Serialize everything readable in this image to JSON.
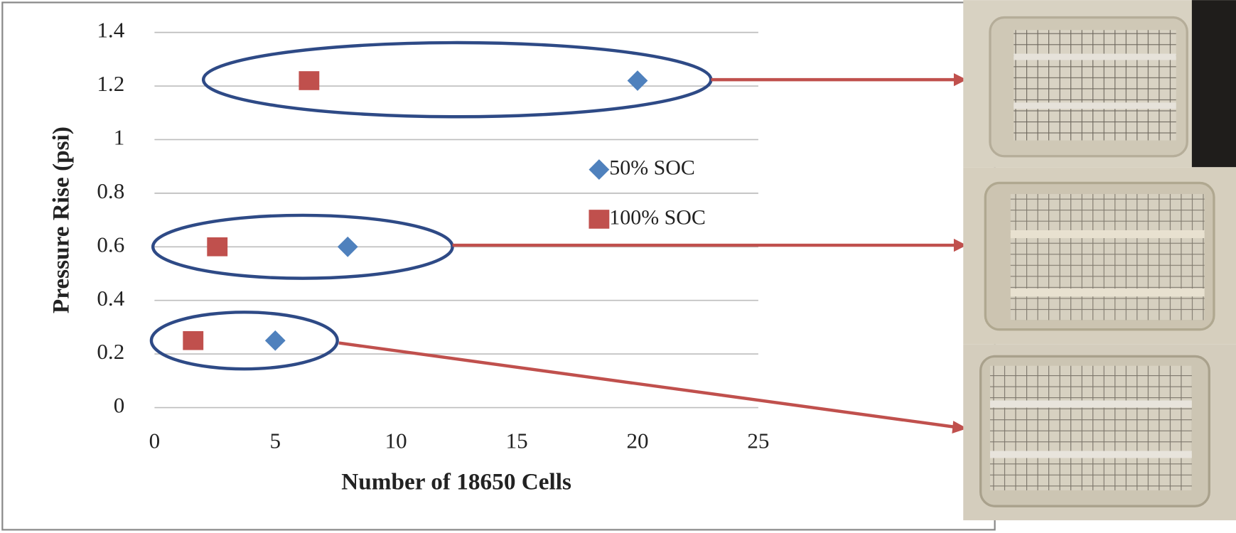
{
  "chart_data": {
    "type": "scatter",
    "xlabel": "Number of 18650 Cells",
    "ylabel": "Pressure Rise (psi)",
    "xlim": [
      0,
      25
    ],
    "xticks": [
      0,
      5,
      10,
      15,
      20,
      25
    ],
    "ylim": [
      0,
      1.4
    ],
    "yticks": [
      0,
      0.2,
      0.4,
      0.6,
      0.8,
      1,
      1.2,
      1.4
    ],
    "grid": true,
    "series": [
      {
        "name": "50% SOC",
        "color": "#4f81bd",
        "marker": "diamond",
        "x": [
          5,
          8,
          20
        ],
        "values": [
          0.25,
          0.6,
          1.22
        ]
      },
      {
        "name": "100% SOC",
        "color": "#c0504d",
        "marker": "square",
        "x": [
          1.6,
          2.6,
          6.4
        ],
        "values": [
          0.25,
          0.6,
          1.22
        ]
      }
    ]
  }
}
